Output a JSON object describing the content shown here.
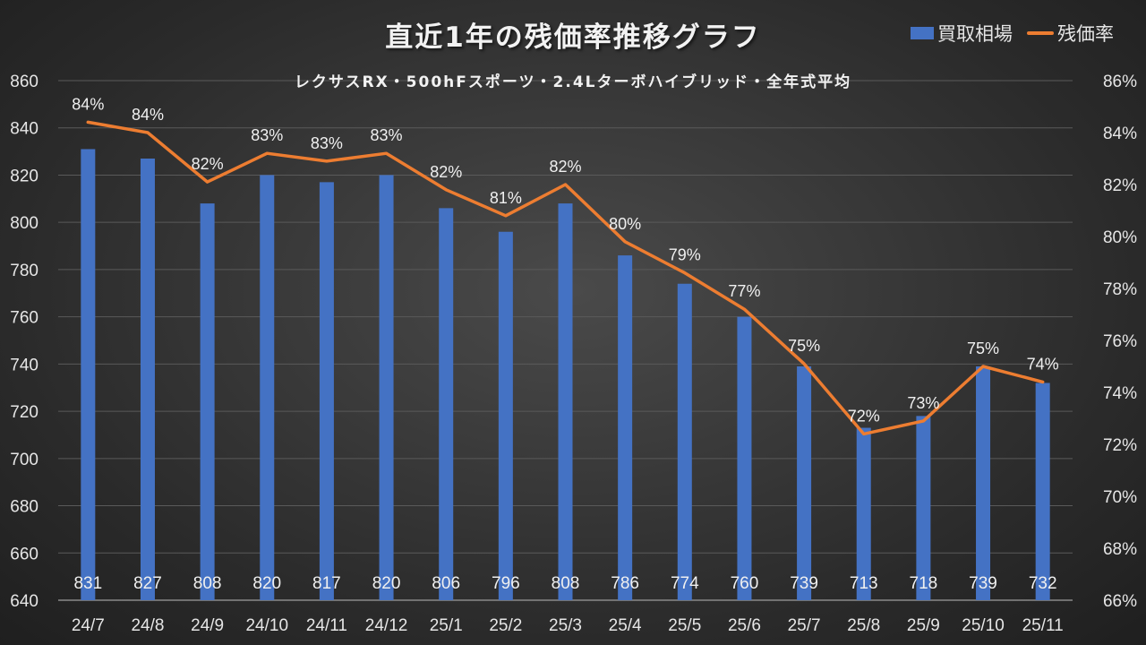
{
  "chart_data": {
    "type": "bar",
    "title": "直近1年の残価率推移グラフ",
    "subtitle": "レクサスRX・500hFスポーツ・2.4Lターボハイブリッド・全年式平均",
    "categories": [
      "24/7",
      "24/8",
      "24/9",
      "24/10",
      "24/11",
      "24/12",
      "25/1",
      "25/2",
      "25/3",
      "25/4",
      "25/5",
      "25/6",
      "25/7",
      "25/8",
      "25/9",
      "25/10",
      "25/11"
    ],
    "series": [
      {
        "name": "買取相場",
        "type": "bar",
        "axis": "left",
        "color": "#4472c4",
        "values": [
          831,
          827,
          808,
          820,
          817,
          820,
          806,
          796,
          808,
          786,
          774,
          760,
          739,
          713,
          718,
          739,
          732
        ],
        "labels": [
          "831",
          "827",
          "808",
          "820",
          "817",
          "820",
          "806",
          "796",
          "808",
          "786",
          "774",
          "760",
          "739",
          "713",
          "718",
          "739",
          "732"
        ]
      },
      {
        "name": "残価率",
        "type": "line",
        "axis": "right",
        "color": "#ed7d31",
        "values": [
          84.4,
          84.0,
          82.1,
          83.2,
          82.9,
          83.2,
          81.8,
          80.8,
          82.0,
          79.8,
          78.6,
          77.2,
          75.1,
          72.4,
          72.9,
          75.0,
          74.4
        ],
        "labels": [
          "84%",
          "84%",
          "82%",
          "83%",
          "83%",
          "83%",
          "82%",
          "81%",
          "82%",
          "80%",
          "79%",
          "77%",
          "75%",
          "72%",
          "73%",
          "75%",
          "74%"
        ]
      }
    ],
    "y_left": {
      "min": 640,
      "max": 860,
      "step": 20,
      "ticks": [
        "640",
        "660",
        "680",
        "700",
        "720",
        "740",
        "760",
        "780",
        "800",
        "820",
        "840",
        "860"
      ]
    },
    "y_right": {
      "min": 66,
      "max": 86,
      "step": 2,
      "ticks": [
        "66%",
        "68%",
        "70%",
        "72%",
        "74%",
        "76%",
        "78%",
        "80%",
        "82%",
        "84%",
        "86%"
      ]
    },
    "xlabel": "",
    "ylabel": "",
    "grid": true,
    "legend": "top-right"
  },
  "legend": {
    "bar_label": "買取相場",
    "line_label": "残価率"
  }
}
